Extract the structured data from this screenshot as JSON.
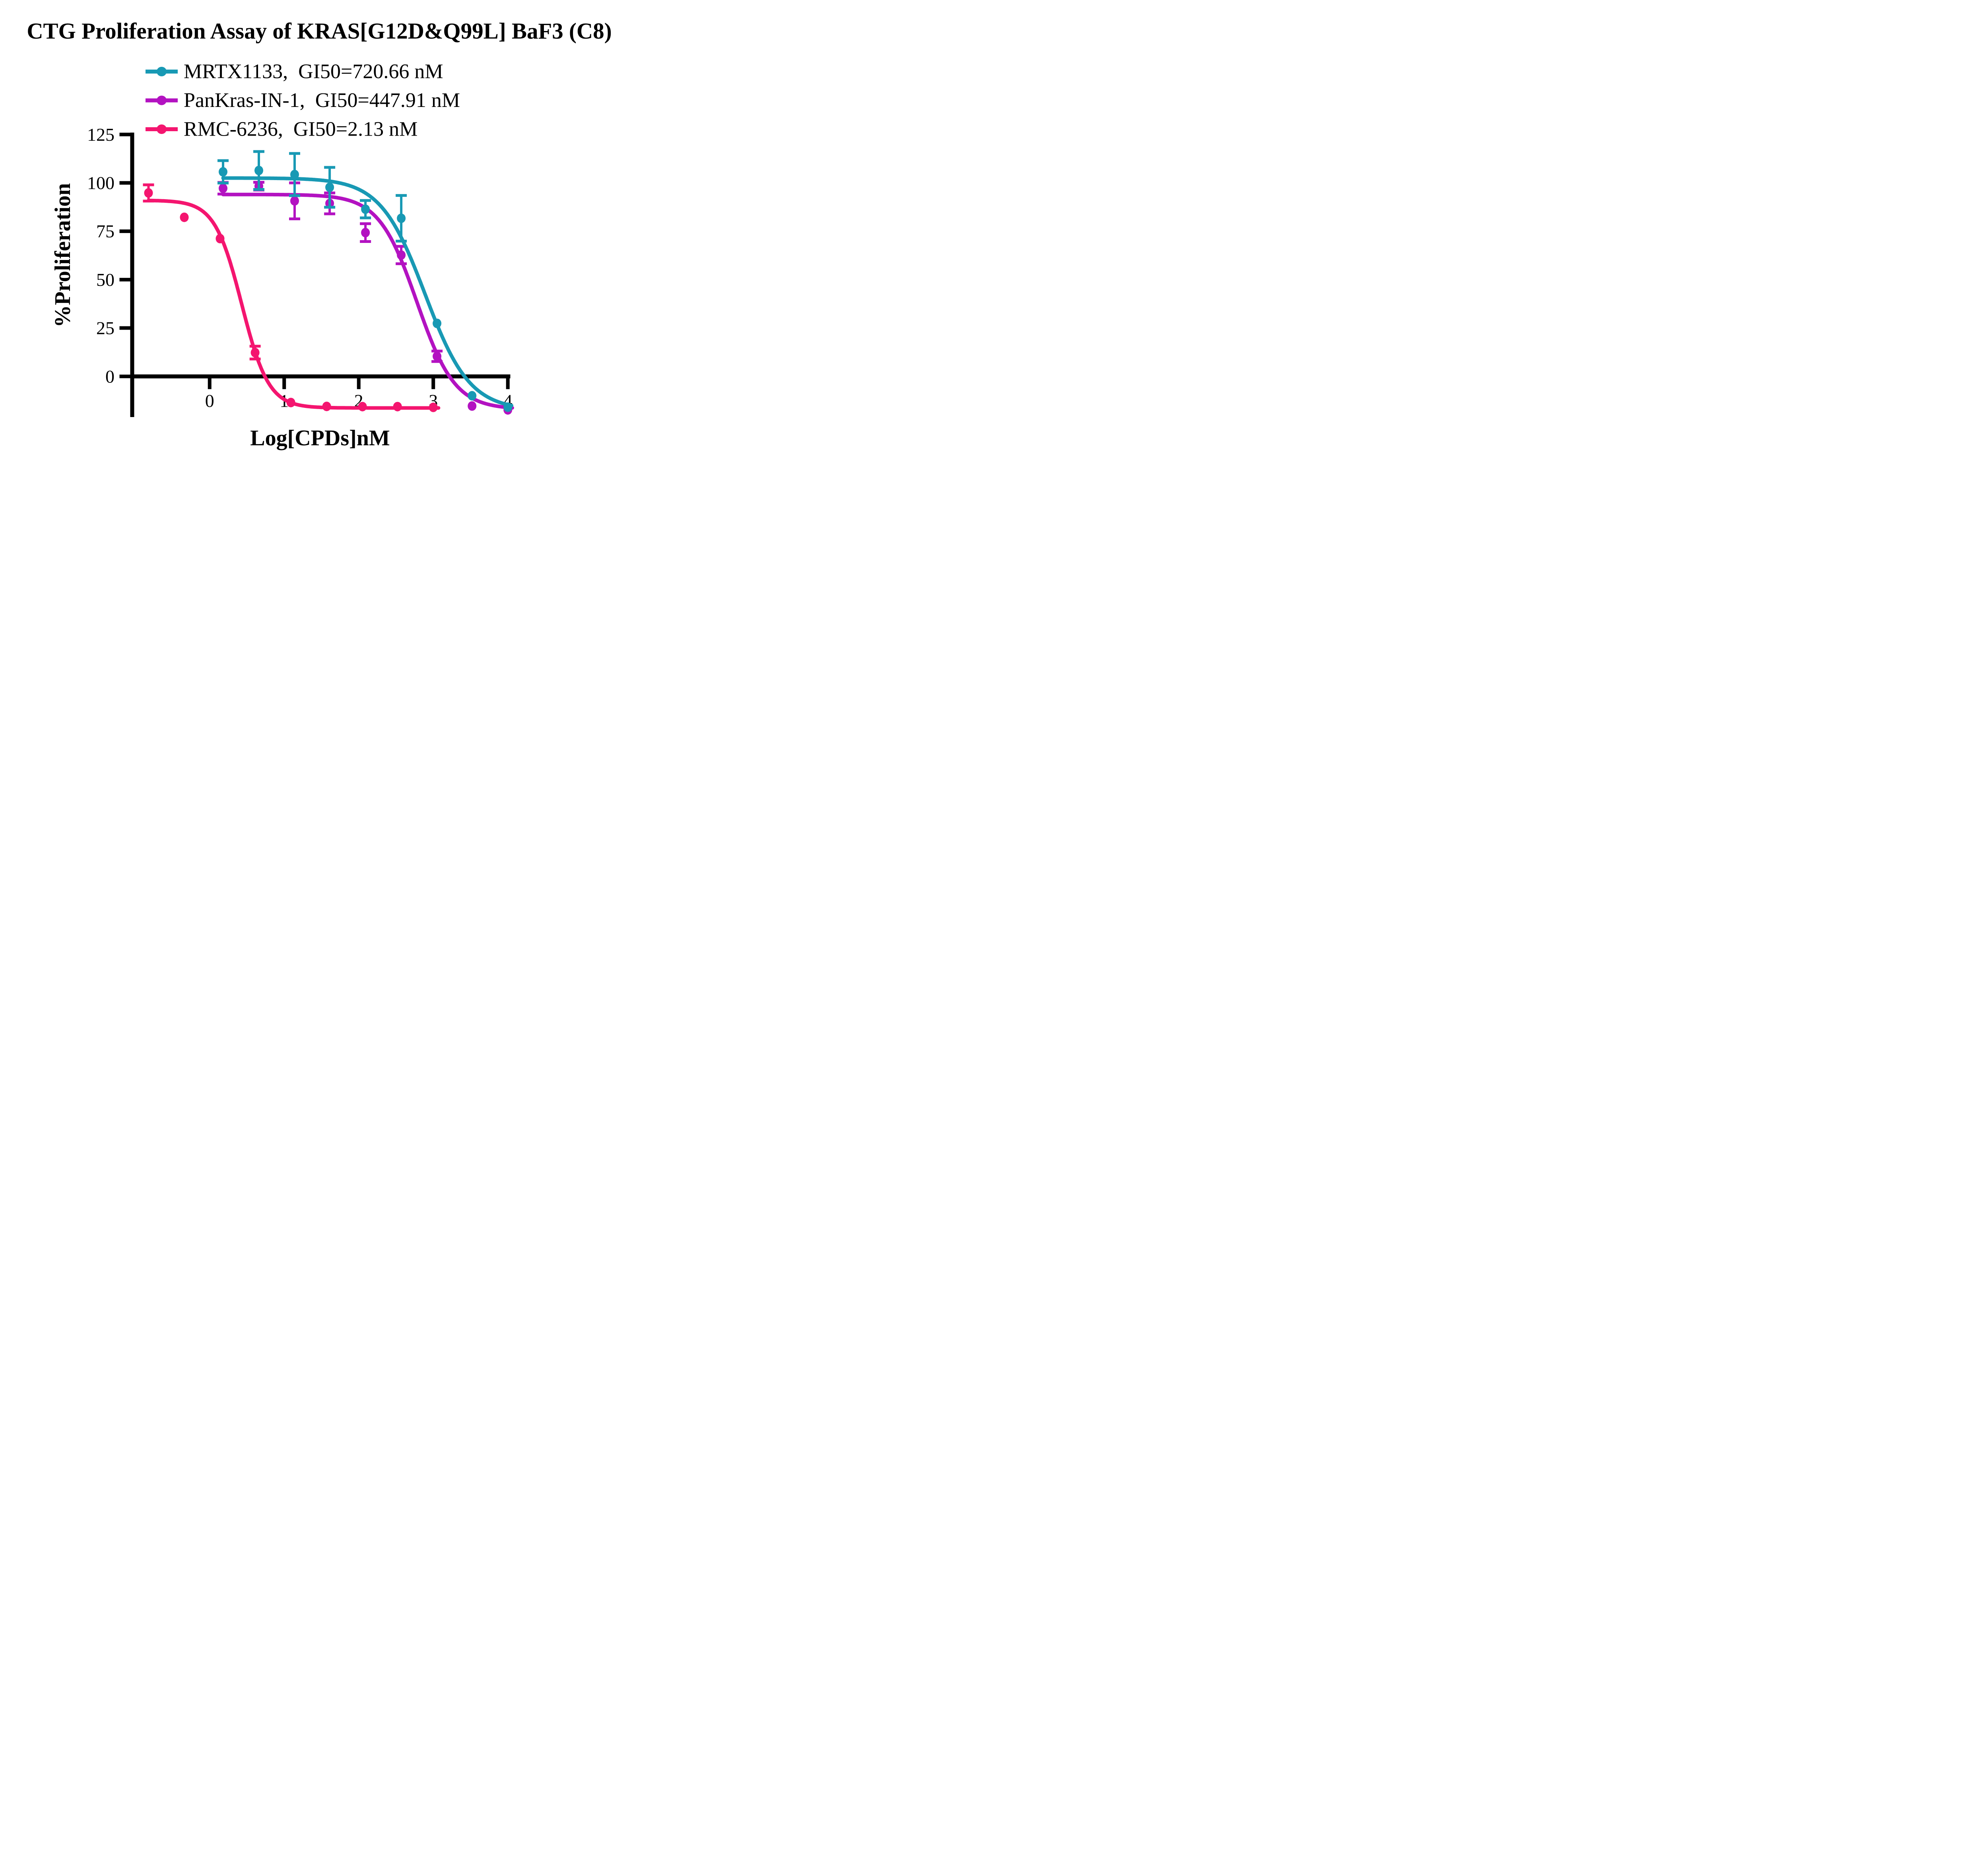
{
  "title": "CTG Proliferation Assay of KRAS[G12D&Q99L] BaF3 (C8)",
  "legend": {
    "items": [
      {
        "label": "MRTX1133,  GI50=720.66 nM",
        "series": "MRTX1133",
        "gi50_text": "GI50=720.66 nM"
      },
      {
        "label": "PanKras-IN-1,  GI50=447.91 nM",
        "series": "PanKras-IN-1",
        "gi50_text": "GI50=447.91 nM"
      },
      {
        "label": "RMC-6236,  GI50=2.13 nM",
        "series": "RMC-6236",
        "gi50_text": "GI50=2.13 nM"
      }
    ]
  },
  "axes": {
    "x": {
      "label": "Log[CPDs]nM",
      "ticks": [
        0,
        1,
        2,
        3,
        4
      ],
      "min": -1.04,
      "max": 4.15
    },
    "y": {
      "label": "%Proliferation",
      "ticks": [
        0,
        25,
        50,
        75,
        100,
        125
      ],
      "min": -21,
      "max": 125
    }
  },
  "chart_data": {
    "type": "scatter",
    "subtype": "dose-response fit curves with error bars",
    "x_unit": "log10 concentration (nM)",
    "y_unit": "% proliferation",
    "legend_position": "top",
    "grid": false,
    "series": [
      {
        "name": "MRTX1133",
        "gi50_nM": 720.66,
        "color": "#1899B4",
        "x": [
          0.18,
          0.66,
          1.14,
          1.61,
          2.09,
          2.57,
          3.05,
          3.52,
          4.0
        ],
        "y": [
          105.7,
          106.4,
          104.3,
          97.7,
          86.4,
          81.7,
          27.4,
          -10.0,
          -15.9
        ],
        "yerr": [
          5.8,
          9.8,
          10.9,
          10.3,
          4.5,
          11.8,
          0,
          0,
          0
        ],
        "fit": {
          "top": 102.5,
          "bottom": -17.5,
          "hill": 1.45,
          "log_ec50": 2.89,
          "x_start": 0.18,
          "x_end": 4.05
        }
      },
      {
        "name": "PanKras-IN-1",
        "gi50_nM": 447.91,
        "color": "#B312C1",
        "x": [
          0.18,
          0.66,
          1.14,
          1.61,
          2.09,
          2.57,
          3.05,
          3.52,
          4.0
        ],
        "y": [
          97.2,
          98.3,
          90.7,
          89.4,
          74.3,
          62.7,
          10.4,
          -15.3,
          -17.3
        ],
        "yerr": [
          3.0,
          2.0,
          9.3,
          5.4,
          4.6,
          4.5,
          2.7,
          0,
          0
        ],
        "fit": {
          "top": 94,
          "bottom": -17,
          "hill": 1.7,
          "log_ec50": 2.78,
          "x_start": 0.18,
          "x_end": 4.06
        }
      },
      {
        "name": "RMC-6236",
        "gi50_nM": 2.13,
        "color": "#F4156F",
        "x": [
          -0.82,
          -0.34,
          0.14,
          0.61,
          1.09,
          1.57,
          2.05,
          2.52,
          3.0
        ],
        "y": [
          94.8,
          82.2,
          71.2,
          12.3,
          -13.5,
          -15.5,
          -15.6,
          -15.6,
          -16.0
        ],
        "yerr": [
          4.2,
          0,
          0,
          3.3,
          0,
          0,
          0,
          0,
          0
        ],
        "fit": {
          "top": 91,
          "bottom": -16.3,
          "hill": 2.4,
          "log_ec50": 0.43,
          "x_start": -0.82,
          "x_end": 3.07
        }
      }
    ],
    "draw_order": [
      1,
      0,
      2
    ]
  }
}
